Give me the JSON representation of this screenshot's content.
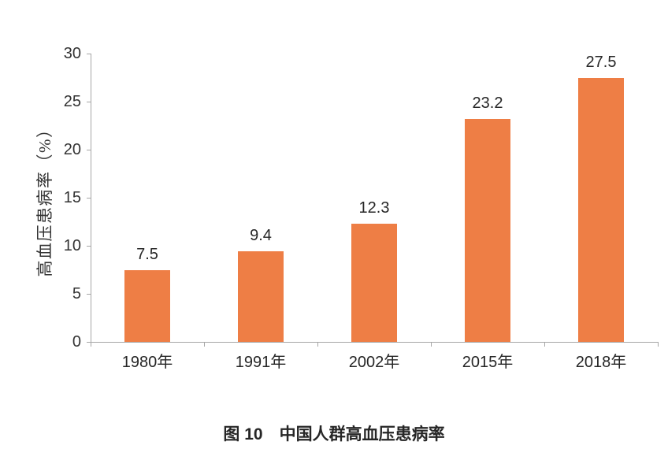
{
  "caption": "图 10　中国人群高血压患病率",
  "chart_data": {
    "type": "bar",
    "title": "图 10　中国人群高血压患病率",
    "categories": [
      "1980年",
      "1991年",
      "2002年",
      "2015年",
      "2018年"
    ],
    "values": [
      7.5,
      9.4,
      12.3,
      23.2,
      27.5
    ],
    "value_labels": [
      "7.5",
      "9.4",
      "12.3",
      "23.2",
      "27.5"
    ],
    "xlabel": "",
    "ylabel": "高血压患病率（%）",
    "ylim": [
      0,
      30
    ],
    "yticks": [
      0,
      5,
      10,
      15,
      20,
      25,
      30
    ],
    "grid": false,
    "legend": "none",
    "bar_color": "#EE7E45",
    "axis_color": "#A6A6A6",
    "tick_text_color": "#333333",
    "value_text_color": "#262626"
  }
}
